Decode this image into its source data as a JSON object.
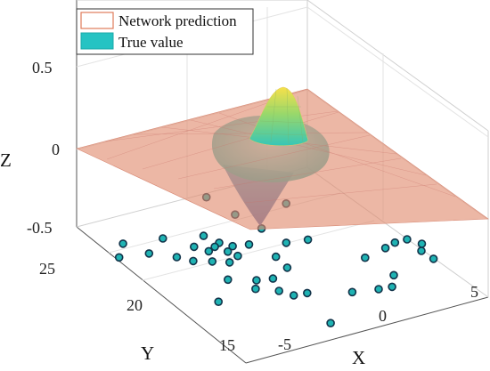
{
  "chart_data": {
    "type": "surface3d",
    "xlabel": "X",
    "ylabel": "Y",
    "zlabel": "Z",
    "x_ticks": [
      "-5",
      "0",
      "5"
    ],
    "y_ticks": [
      "15",
      "20",
      "25"
    ],
    "z_ticks": [
      "0.5",
      "0",
      "-0.5"
    ],
    "xlim": [
      -7,
      7
    ],
    "ylim": [
      14,
      27
    ],
    "zlim": [
      -0.6,
      0.5
    ],
    "legend_placement": "top-left",
    "grid": true,
    "series": [
      {
        "name": "Network prediction",
        "style": "mesh-surface",
        "color": "#e07b5a"
      },
      {
        "name": "True value",
        "style": "filled-surface",
        "color": "#25c3c3"
      }
    ],
    "surface": {
      "peak": {
        "x": 0.2,
        "y": 22.5,
        "z": 0.48
      },
      "trough": {
        "x": -2.0,
        "y": 19.5,
        "z": -0.55
      },
      "baseline_z": 0
    },
    "sample_points": [
      [
        -5.9,
        24.9,
        -0.6
      ],
      [
        -6.8,
        24.0,
        -0.6
      ],
      [
        -3.9,
        24.5,
        -0.6
      ],
      [
        -5.3,
        23.7,
        -0.6
      ],
      [
        -2.0,
        23.9,
        -0.6
      ],
      [
        -3.0,
        23.3,
        -0.6
      ],
      [
        -1.7,
        23.1,
        -0.6
      ],
      [
        -2.1,
        22.9,
        -0.6
      ],
      [
        -2.6,
        22.7,
        -0.6
      ],
      [
        -1.3,
        22.6,
        -0.6
      ],
      [
        -4.3,
        22.9,
        -0.6
      ],
      [
        -3.8,
        22.3,
        -0.6
      ],
      [
        -1.8,
        22.3,
        -0.6
      ],
      [
        -3.0,
        21.9,
        -0.6
      ],
      [
        -1.6,
        21.8,
        -0.6
      ],
      [
        -2.3,
        21.5,
        -0.6
      ],
      [
        -3.3,
        20.3,
        -0.6
      ],
      [
        -1.3,
        19.5,
        -0.6
      ],
      [
        -2.1,
        19.7,
        -0.6
      ],
      [
        -2.6,
        19.1,
        -0.6
      ],
      [
        3.3,
        24.6,
        -0.6
      ],
      [
        0.2,
        26.6,
        -0.6
      ],
      [
        0.5,
        24.8,
        -0.6
      ],
      [
        0.9,
        23.3,
        -0.6
      ],
      [
        -0.5,
        22.4,
        -0.6
      ],
      [
        0.0,
        21.0,
        -0.6
      ],
      [
        1.2,
        21.8,
        -0.6
      ],
      [
        -0.1,
        20.0,
        -0.6
      ],
      [
        2.3,
        21.6,
        -0.6
      ],
      [
        -1.7,
        18.5,
        -0.6
      ],
      [
        -1.3,
        17.9,
        -0.6
      ],
      [
        -0.6,
        17.8,
        -0.6
      ],
      [
        -4.9,
        18.9,
        -0.6
      ],
      [
        3.8,
        19.2,
        -0.6
      ],
      [
        5.9,
        19.7,
        -0.6
      ],
      [
        5.2,
        19.5,
        -0.6
      ],
      [
        6.6,
        19.7,
        -0.6
      ],
      [
        6.6,
        18.6,
        -0.6
      ],
      [
        7.0,
        19.1,
        -0.6
      ],
      [
        6.7,
        17.8,
        -0.6
      ],
      [
        4.1,
        17.4,
        -0.6
      ],
      [
        3.4,
        16.6,
        -0.6
      ],
      [
        2.7,
        16.7,
        -0.6
      ],
      [
        1.4,
        17.0,
        -0.6
      ],
      [
        -1.2,
        15.2,
        -0.6
      ]
    ]
  }
}
